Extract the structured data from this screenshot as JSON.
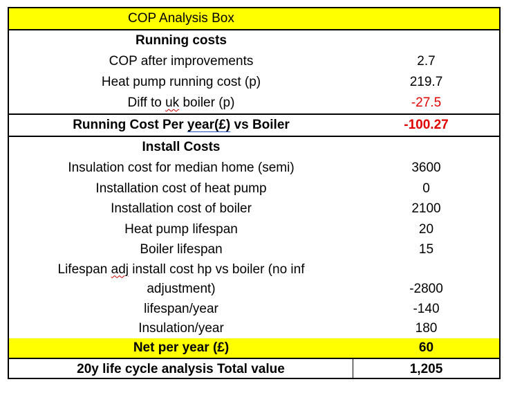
{
  "title": "COP Analysis Box",
  "running_costs": {
    "header": "Running costs",
    "rows": [
      {
        "label": "COP after improvements",
        "value": "2.7"
      },
      {
        "label": "Heat pump running cost (p)",
        "value": "219.7"
      },
      {
        "label_pre": "Diff to ",
        "label_mark": "uk",
        "label_post": " boiler (p)",
        "value": "-27.5"
      }
    ]
  },
  "running_total": {
    "label_pre": "Running Cost Per ",
    "label_mark": "year(£)",
    "label_post": " vs Boiler",
    "value": "-100.27"
  },
  "install_costs": {
    "header": "Install Costs",
    "rows": [
      {
        "label": "Insulation cost for median home (semi)",
        "value": "3600"
      },
      {
        "label": "Installation cost of heat pump",
        "value": "0"
      },
      {
        "label": "Installation cost of boiler",
        "value": "2100"
      },
      {
        "label": "Heat pump lifespan",
        "value": "20"
      },
      {
        "label": "Boiler lifespan",
        "value": "15"
      }
    ],
    "lifespan_adj": {
      "line1_pre": "Lifespan ",
      "line1_mark": "adj",
      "line1_post": " install cost hp vs boiler (no inf",
      "line2": "adjustment)",
      "value": "-2800"
    },
    "rows2": [
      {
        "label": "lifespan/year",
        "value": "-140"
      },
      {
        "label": "Insulation/year",
        "value": "180"
      }
    ]
  },
  "net": {
    "label": "Net per year (£)",
    "value": "60"
  },
  "lifecycle": {
    "label": "20y life cycle analysis Total value",
    "value": "1,205"
  },
  "colors": {
    "highlight": "#ffff00",
    "negative": "#e00000",
    "border": "#000000"
  }
}
